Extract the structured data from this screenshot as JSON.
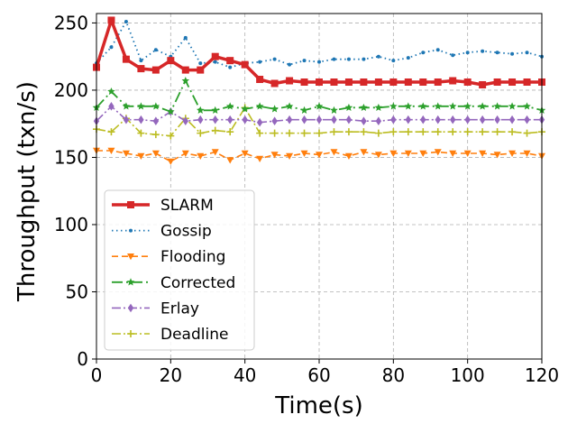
{
  "chart_data": {
    "type": "line",
    "title": "",
    "xlabel": "Time(s)",
    "ylabel": "Throughput (txn/s)",
    "xlim": [
      0,
      120
    ],
    "ylim": [
      0,
      257
    ],
    "xticks": [
      0,
      20,
      40,
      60,
      80,
      100,
      120
    ],
    "yticks": [
      0,
      50,
      100,
      150,
      200,
      250
    ],
    "grid": true,
    "legend_position": "center-left",
    "x": [
      0,
      4,
      8,
      12,
      16,
      20,
      24,
      28,
      32,
      36,
      40,
      44,
      48,
      52,
      56,
      60,
      64,
      68,
      72,
      76,
      80,
      84,
      88,
      92,
      96,
      100,
      104,
      108,
      112,
      116,
      120
    ],
    "series": [
      {
        "name": "SLARM",
        "color": "#d62728",
        "values": [
          217,
          252,
          223,
          216,
          215,
          222,
          215,
          215,
          225,
          222,
          219,
          208,
          205,
          207,
          206,
          206,
          206,
          206,
          206,
          206,
          206,
          206,
          206,
          206,
          207,
          206,
          204,
          206,
          206,
          206,
          206
        ]
      },
      {
        "name": "Gossip",
        "color": "#1f77b4",
        "values": [
          220,
          232,
          251,
          222,
          230,
          225,
          239,
          220,
          221,
          217,
          220,
          221,
          223,
          219,
          222,
          221,
          223,
          223,
          223,
          225,
          222,
          224,
          228,
          230,
          226,
          228,
          229,
          228,
          227,
          228,
          225
        ]
      },
      {
        "name": "Flooding",
        "color": "#ff7f0e",
        "values": [
          155,
          155,
          153,
          151,
          153,
          147,
          153,
          151,
          154,
          148,
          153,
          149,
          152,
          151,
          153,
          152,
          154,
          151,
          154,
          152,
          153,
          153,
          153,
          154,
          153,
          153,
          153,
          152,
          153,
          153,
          151
        ]
      },
      {
        "name": "Corrected",
        "color": "#2ca02c",
        "values": [
          187,
          199,
          188,
          188,
          188,
          184,
          207,
          185,
          185,
          188,
          186,
          188,
          186,
          188,
          185,
          188,
          185,
          187,
          187,
          187,
          188,
          188,
          188,
          188,
          188,
          188,
          188,
          188,
          188,
          188,
          185
        ]
      },
      {
        "name": "Erlay",
        "color": "#9467bd",
        "values": [
          177,
          188,
          178,
          178,
          177,
          184,
          177,
          178,
          178,
          178,
          178,
          176,
          177,
          178,
          178,
          178,
          178,
          178,
          177,
          177,
          178,
          178,
          178,
          178,
          178,
          178,
          178,
          178,
          178,
          178,
          178
        ]
      },
      {
        "name": "Deadline",
        "color": "#bcbd22",
        "values": [
          171,
          169,
          179,
          168,
          167,
          166,
          179,
          168,
          170,
          169,
          187,
          168,
          168,
          168,
          168,
          168,
          169,
          169,
          169,
          168,
          169,
          169,
          169,
          169,
          169,
          169,
          169,
          169,
          169,
          168,
          169
        ]
      }
    ]
  }
}
